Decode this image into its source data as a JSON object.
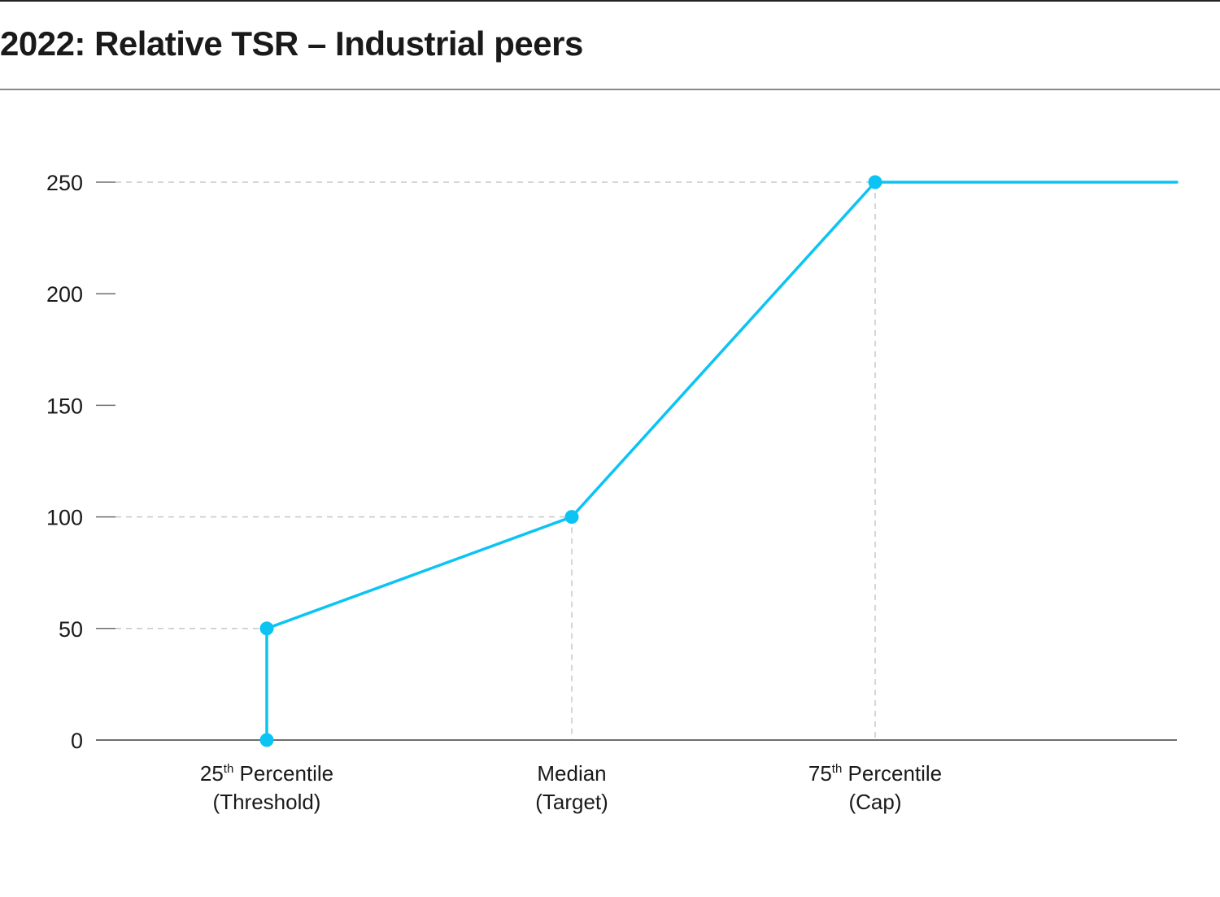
{
  "title": "2022: Relative TSR – Industrial peers",
  "colors": {
    "line": "#0cc4f3",
    "axis": "#6e6e6e",
    "guide": "#c8c8c8",
    "text": "#1a1a1a"
  },
  "chart_data": {
    "type": "line",
    "title": "2022: Relative TSR – Industrial peers",
    "xlabel": "",
    "ylabel": "",
    "ylim": [
      0,
      250
    ],
    "y_ticks": [
      "0",
      "50",
      "100",
      "150",
      "200",
      "250"
    ],
    "categories": [
      {
        "line1_base": "25",
        "line1_sup": "th",
        "line1_rest": " Percentile",
        "line2": "(Threshold)"
      },
      {
        "line1_base": "Median",
        "line1_sup": "",
        "line1_rest": "",
        "line2": "(Target)"
      },
      {
        "line1_base": "75",
        "line1_sup": "th",
        "line1_rest": " Percentile",
        "line2": "(Cap)"
      }
    ],
    "series": [
      {
        "points": [
          {
            "x": "25th Percentile (Threshold)",
            "y": 0
          },
          {
            "x": "25th Percentile (Threshold)",
            "y": 50
          },
          {
            "x": "Median (Target)",
            "y": 100
          },
          {
            "x": "75th Percentile (Cap)",
            "y": 250
          }
        ],
        "continues_flat_right": true
      }
    ],
    "grid": false,
    "legend": "none"
  }
}
